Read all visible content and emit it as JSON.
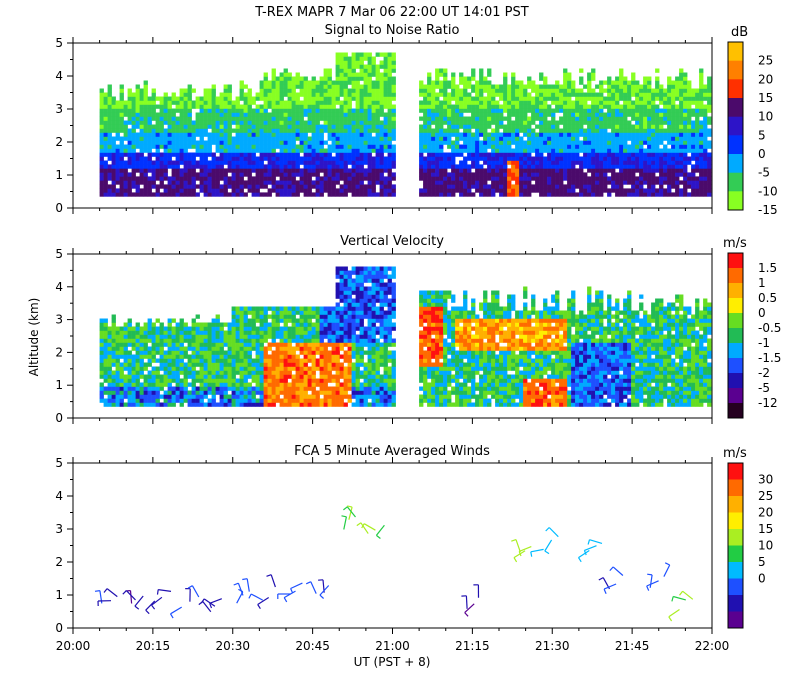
{
  "header": {
    "title": "T-REX   MAPR   7 Mar 06   22:00 UT   14:01   PST"
  },
  "colors": {
    "frame": "#000000",
    "background": "#ffffff"
  },
  "chart_data": [
    {
      "type": "heatmap",
      "title": "Signal to Noise Ratio",
      "ylabel": "",
      "ylim": [
        0,
        5
      ],
      "yticks": [
        "0",
        "1",
        "2",
        "3",
        "4",
        "5"
      ],
      "colorbar": {
        "unit": "dB",
        "labels": [
          "25",
          "20",
          "15",
          "10",
          "5",
          "0",
          "-5",
          "-10",
          "-15"
        ],
        "colors": [
          "#ffc000",
          "#ff8000",
          "#ff3000",
          "#4b0a6b",
          "#2d14c8",
          "#0032ff",
          "#00aaff",
          "#33cc55",
          "#88ff22"
        ]
      },
      "data_gap_utc": [
        "21:00",
        "21:05"
      ],
      "description_values": "low-level SNR 0 to 10 dB near 1 km; -10 to -15 dB aloft"
    },
    {
      "type": "heatmap",
      "title": "Vertical Velocity",
      "ylabel": "Altitude (km)",
      "ylim": [
        0,
        5
      ],
      "yticks": [
        "0",
        "1",
        "2",
        "3",
        "4",
        "5"
      ],
      "colorbar": {
        "unit": "m/s",
        "labels": [
          "1.5",
          "1",
          "0.5",
          "0",
          "-0.5",
          "-1",
          "-1.5",
          "-2",
          "-5",
          "-12"
        ],
        "colors": [
          "#ff1010",
          "#ff6a00",
          "#ffb000",
          "#ffee00",
          "#66dd22",
          "#22bb55",
          "#00aaff",
          "#1e50ff",
          "#2010b0",
          "#5a0090",
          "#250020"
        ]
      }
    },
    {
      "type": "scatter",
      "title": "FCA 5 Minute Averaged Winds",
      "ylabel": "",
      "xlabel": "UT  (PST + 8)",
      "ylim": [
        0,
        5
      ],
      "yticks": [
        "0",
        "1",
        "2",
        "3",
        "4",
        "5"
      ],
      "xticks": [
        "20:00",
        "20:15",
        "20:30",
        "20:45",
        "21:00",
        "21:15",
        "21:30",
        "21:45",
        "22:00"
      ],
      "colorbar": {
        "unit": "m/s",
        "labels": [
          "30",
          "25",
          "20",
          "15",
          "10",
          "5",
          "0"
        ],
        "colors": [
          "#ff1010",
          "#ff6a00",
          "#ffb000",
          "#ffee00",
          "#aaee22",
          "#22cc44",
          "#00bbff",
          "#1e50ff",
          "#2010b0",
          "#5a0090"
        ]
      },
      "barb_sample": [
        {
          "t": "20:07",
          "z": 0.8,
          "spd": 4
        },
        {
          "t": "20:12",
          "z": 0.8,
          "spd": 3
        },
        {
          "t": "20:17",
          "z": 0.9,
          "spd": 5
        },
        {
          "t": "20:22",
          "z": 0.8,
          "spd": 4
        },
        {
          "t": "20:27",
          "z": 0.7,
          "spd": 3
        },
        {
          "t": "20:32",
          "z": 1.0,
          "spd": 6
        },
        {
          "t": "20:37",
          "z": 1.0,
          "spd": 5
        },
        {
          "t": "20:42",
          "z": 1.2,
          "spd": 7
        },
        {
          "t": "20:47",
          "z": 1.1,
          "spd": 6
        },
        {
          "t": "20:52",
          "z": 3.2,
          "spd": 14
        },
        {
          "t": "20:57",
          "z": 3.0,
          "spd": 15
        },
        {
          "t": "21:15",
          "z": 0.7,
          "spd": 3
        },
        {
          "t": "21:25",
          "z": 2.4,
          "spd": 15
        },
        {
          "t": "21:30",
          "z": 2.6,
          "spd": 11
        },
        {
          "t": "21:38",
          "z": 2.5,
          "spd": 9
        },
        {
          "t": "21:42",
          "z": 1.4,
          "spd": 5
        },
        {
          "t": "21:50",
          "z": 1.4,
          "spd": 7
        },
        {
          "t": "21:55",
          "z": 0.8,
          "spd": 14
        }
      ]
    }
  ]
}
